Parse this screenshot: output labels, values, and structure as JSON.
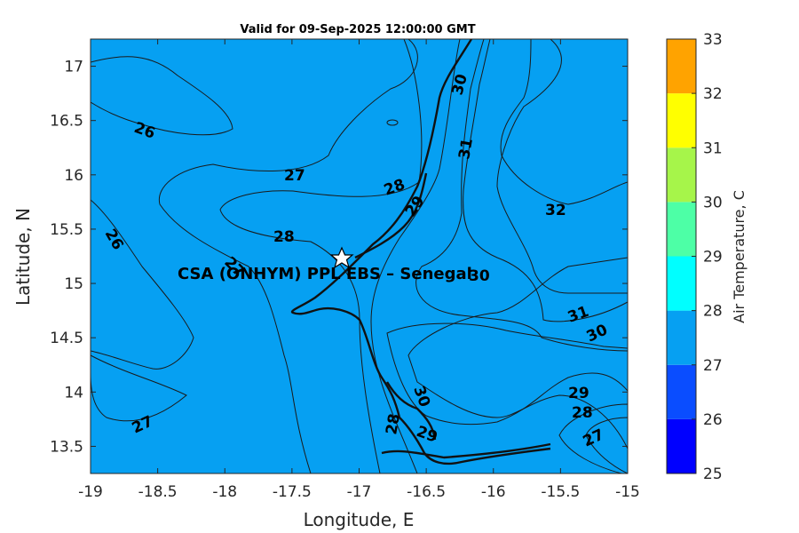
{
  "title": "Valid for 09-Sep-2025 12:00:00 GMT",
  "site_label": "CSA (ONHYM) PPL EBS  – Senegal",
  "colorbar": {
    "label": "Air Temperature, C",
    "levels": [
      25,
      26,
      27,
      28,
      29,
      30,
      31,
      32,
      33
    ],
    "colors": [
      "#0000ff",
      "#0a4dff",
      "#06a0f2",
      "#00ffff",
      "#4dffa6",
      "#a6f54a",
      "#ffff00",
      "#ffa300",
      "#ff5200"
    ]
  },
  "chart_data": {
    "type": "heatmap",
    "title": "Valid for 09-Sep-2025 12:00:00 GMT",
    "xlabel": "Longitude, E",
    "ylabel": "Latitude, N",
    "xlim": [
      -19,
      -15
    ],
    "ylim": [
      13.25,
      17.25
    ],
    "xticks": [
      -19,
      -18.5,
      -18,
      -17.5,
      -17,
      -16.5,
      -16,
      -15.5,
      -15
    ],
    "yticks": [
      13.5,
      14,
      14.5,
      15,
      15.5,
      16,
      16.5,
      17
    ],
    "contour_levels": [
      25,
      26,
      27,
      28,
      29,
      30,
      31,
      32,
      33
    ],
    "contour_labels": [
      {
        "text": "26",
        "lon": -18.73,
        "lat": 16.44
      },
      {
        "text": "26",
        "lon": -18.83,
        "lat": 15.45
      },
      {
        "text": "27",
        "lon": -17.48,
        "lat": 16.0
      },
      {
        "text": "27",
        "lon": -17.97,
        "lat": 15.2
      },
      {
        "text": "27",
        "lon": -18.65,
        "lat": 13.7
      },
      {
        "text": "27",
        "lon": -15.32,
        "lat": 13.55
      },
      {
        "text": "28",
        "lon": -17.55,
        "lat": 15.45
      },
      {
        "text": "28",
        "lon": -16.73,
        "lat": 15.92
      },
      {
        "text": "28",
        "lon": -16.77,
        "lat": 13.73
      },
      {
        "text": "28",
        "lon": -15.38,
        "lat": 13.8
      },
      {
        "text": "29",
        "lon": -16.58,
        "lat": 15.75
      },
      {
        "text": "29",
        "lon": -16.53,
        "lat": 13.62
      },
      {
        "text": "29",
        "lon": -15.38,
        "lat": 13.99
      },
      {
        "text": "30",
        "lon": -16.23,
        "lat": 16.88
      },
      {
        "text": "30",
        "lon": -16.05,
        "lat": 15.08
      },
      {
        "text": "30",
        "lon": -16.65,
        "lat": 13.96
      },
      {
        "text": "30",
        "lon": -15.2,
        "lat": 14.62
      },
      {
        "text": "31",
        "lon": -16.17,
        "lat": 16.26
      },
      {
        "text": "31",
        "lon": -15.33,
        "lat": 14.77
      },
      {
        "text": "32",
        "lon": -15.58,
        "lat": 15.69
      }
    ],
    "site": {
      "lon": -17.12,
      "lat": 15.23,
      "marker": "star"
    },
    "grid": false
  }
}
